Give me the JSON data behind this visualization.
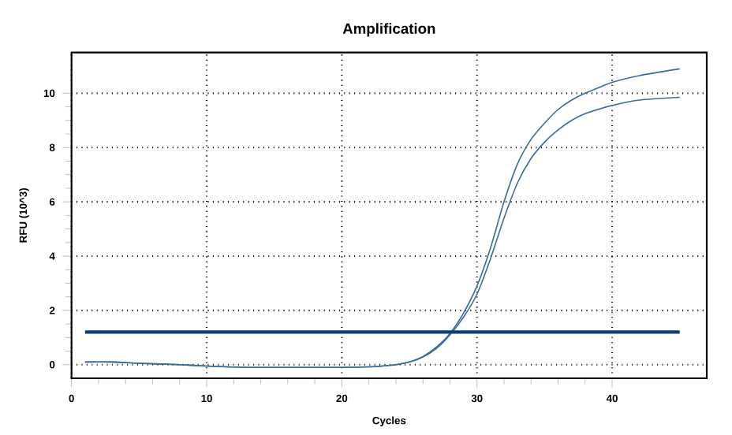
{
  "chart_data": {
    "type": "line",
    "title": "Amplification",
    "xlabel": "Cycles",
    "ylabel": "RFU (10^3)",
    "xlim": [
      0,
      47
    ],
    "ylim": [
      -0.5,
      11.5
    ],
    "xticks": [
      0,
      10,
      20,
      30,
      40
    ],
    "yticks": [
      0,
      2,
      4,
      6,
      8,
      10
    ],
    "grid": true,
    "marker": "none",
    "line_style": "solid",
    "series": [
      {
        "color": "#3a6a9c",
        "x": [
          1,
          3,
          5,
          8,
          10,
          13,
          15,
          18,
          20,
          22,
          23,
          24,
          25,
          26,
          27,
          28,
          29,
          30,
          31,
          32,
          33,
          34,
          35,
          36,
          37,
          38,
          40,
          42,
          45
        ],
        "values": [
          0.1,
          0.1,
          0.05,
          0,
          -0.05,
          -0.1,
          -0.1,
          -0.1,
          -0.1,
          -0.08,
          -0.05,
          0,
          0.1,
          0.3,
          0.65,
          1.15,
          1.9,
          2.9,
          4.3,
          6.0,
          7.4,
          8.3,
          8.9,
          9.4,
          9.75,
          10.0,
          10.4,
          10.65,
          10.9
        ]
      },
      {
        "color": "#3a6a9c",
        "x": [
          1,
          3,
          5,
          8,
          10,
          13,
          15,
          18,
          20,
          22,
          23,
          24,
          25,
          26,
          27,
          28,
          29,
          30,
          31,
          32,
          33,
          34,
          35,
          36,
          37,
          38,
          40,
          42,
          45
        ],
        "values": [
          0.1,
          0.1,
          0.05,
          0,
          -0.05,
          -0.1,
          -0.1,
          -0.1,
          -0.1,
          -0.08,
          -0.05,
          0,
          0.1,
          0.28,
          0.6,
          1.1,
          1.75,
          2.6,
          3.9,
          5.4,
          6.7,
          7.6,
          8.2,
          8.65,
          9.0,
          9.25,
          9.55,
          9.75,
          9.85
        ]
      },
      {
        "color": "#0a3d78",
        "x": [
          1,
          45
        ],
        "values": [
          1.2,
          1.2
        ]
      }
    ]
  }
}
